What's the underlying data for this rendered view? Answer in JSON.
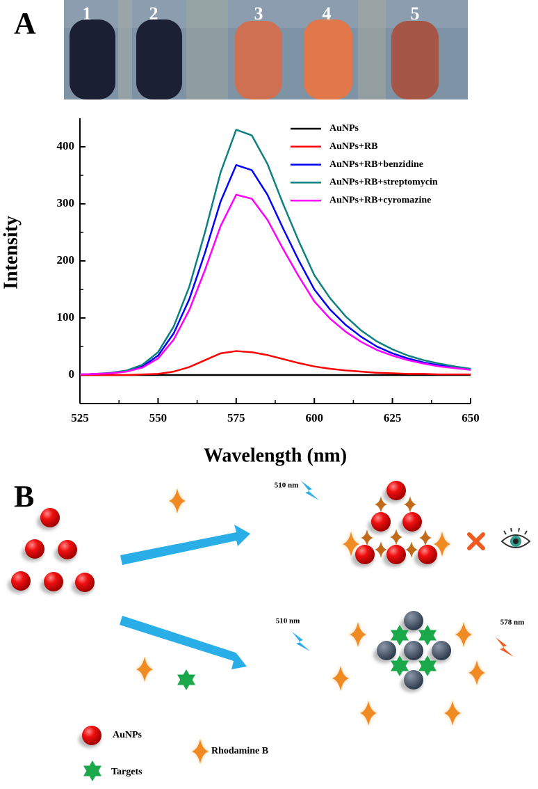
{
  "panel_labels": [
    "A",
    "B"
  ],
  "photo": {
    "tube_labels": [
      "1",
      "2",
      "3",
      "4",
      "5"
    ]
  },
  "chart_data": {
    "type": "line",
    "x_label": "Wavelength (nm)",
    "y_label": "Intensity",
    "x": [
      525,
      530,
      535,
      540,
      545,
      550,
      555,
      560,
      565,
      570,
      575,
      580,
      585,
      590,
      595,
      600,
      605,
      610,
      615,
      620,
      625,
      630,
      635,
      640,
      645,
      650
    ],
    "series": [
      {
        "name": "AuNPs",
        "color": "#000000",
        "values": [
          0,
          0,
          0,
          0,
          0,
          0,
          0,
          0,
          0,
          0,
          0,
          0,
          0,
          0,
          0,
          0,
          0,
          0,
          0,
          0,
          0,
          0,
          0,
          0,
          0,
          0
        ]
      },
      {
        "name": "AuNPs+RB",
        "color": "#ff0000",
        "values": [
          0,
          0,
          0,
          0,
          1,
          2,
          6,
          14,
          26,
          38,
          42,
          40,
          35,
          28,
          21,
          15,
          11,
          8,
          6,
          4,
          3,
          2,
          2,
          1,
          1,
          1
        ]
      },
      {
        "name": "AuNPs+RB+benzidine",
        "color": "#0000ff",
        "values": [
          1,
          2,
          3,
          7,
          15,
          34,
          73,
          133,
          214,
          304,
          368,
          359,
          316,
          257,
          201,
          150,
          115,
          88,
          67,
          50,
          38,
          29,
          22,
          17,
          13,
          10
        ]
      },
      {
        "name": "AuNPs+RB+streptomycin",
        "color": "#0e8080",
        "values": [
          1,
          2,
          4,
          8,
          18,
          40,
          85,
          155,
          250,
          355,
          430,
          420,
          370,
          300,
          235,
          175,
          135,
          103,
          78,
          59,
          45,
          34,
          26,
          20,
          15,
          11
        ]
      },
      {
        "name": "AuNPs+RB+cyromazine",
        "color": "#ff00ff",
        "values": [
          1,
          2,
          3,
          6,
          13,
          29,
          62,
          114,
          184,
          261,
          316,
          309,
          272,
          221,
          173,
          129,
          99,
          76,
          58,
          44,
          34,
          26,
          20,
          15,
          12,
          9
        ]
      }
    ],
    "xlim": [
      525,
      650
    ],
    "ylim": [
      -50,
      450
    ],
    "xticks": [
      525,
      550,
      575,
      600,
      625,
      650
    ],
    "yticks": [
      0,
      100,
      200,
      300,
      400
    ],
    "legend": "upper right"
  },
  "diagram": {
    "excitation_labels": [
      "510 nm",
      "510 nm"
    ],
    "emission_label": "578 nm",
    "legend": [
      "AuNPs",
      "Targets",
      "Rhodamine B"
    ]
  }
}
